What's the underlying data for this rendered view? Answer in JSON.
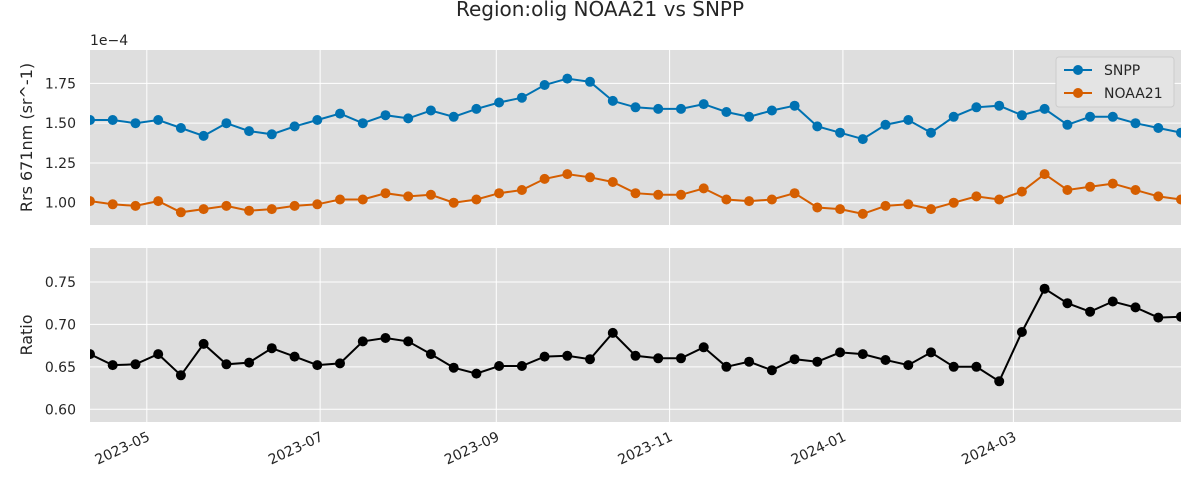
{
  "title": "Region:olig NOAA21 vs SNPP",
  "colors": {
    "snpp": "#0072b2",
    "noaa21": "#d55e00",
    "ratio": "#000000",
    "panel_bg": "#dedede",
    "grid": "#ffffff"
  },
  "chart_data": [
    {
      "type": "line",
      "title": "",
      "ylabel": "Rrs 671nm (sr^-1)",
      "y_multiplier_label": "1e−4",
      "ylim": [
        0.86,
        1.96
      ],
      "yticks": [
        1.0,
        1.25,
        1.5,
        1.75
      ],
      "ytick_labels": [
        "1.00",
        "1.25",
        "1.50",
        "1.75"
      ],
      "grid": true,
      "legend_placement": "top-right",
      "series": [
        {
          "name": "SNPP",
          "values": [
            1.52,
            1.52,
            1.5,
            1.52,
            1.47,
            1.42,
            1.5,
            1.45,
            1.43,
            1.48,
            1.52,
            1.56,
            1.5,
            1.55,
            1.53,
            1.58,
            1.54,
            1.59,
            1.63,
            1.66,
            1.74,
            1.78,
            1.76,
            1.64,
            1.6,
            1.59,
            1.59,
            1.62,
            1.57,
            1.54,
            1.58,
            1.61,
            1.48,
            1.44,
            1.4,
            1.49,
            1.52,
            1.44,
            1.54,
            1.6,
            1.61,
            1.55,
            1.59,
            1.49,
            1.54,
            1.54,
            1.5,
            1.47,
            1.44
          ]
        },
        {
          "name": "NOAA21",
          "values": [
            1.01,
            0.99,
            0.98,
            1.01,
            0.94,
            0.96,
            0.98,
            0.95,
            0.96,
            0.98,
            0.99,
            1.02,
            1.02,
            1.06,
            1.04,
            1.05,
            1.0,
            1.02,
            1.06,
            1.08,
            1.15,
            1.18,
            1.16,
            1.13,
            1.06,
            1.05,
            1.05,
            1.09,
            1.02,
            1.01,
            1.02,
            1.06,
            0.97,
            0.96,
            0.93,
            0.98,
            0.99,
            0.96,
            1.0,
            1.04,
            1.02,
            1.07,
            1.18,
            1.08,
            1.1,
            1.12,
            1.08,
            1.04,
            1.02
          ]
        }
      ]
    },
    {
      "type": "line",
      "title": "",
      "ylabel": "Ratio",
      "ylim": [
        0.585,
        0.79
      ],
      "yticks": [
        0.6,
        0.65,
        0.7,
        0.75
      ],
      "ytick_labels": [
        "0.60",
        "0.65",
        "0.70",
        "0.75"
      ],
      "grid": true,
      "series": [
        {
          "values": [
            0.665,
            0.652,
            0.653,
            0.665,
            0.64,
            0.677,
            0.653,
            0.655,
            0.672,
            0.662,
            0.652,
            0.654,
            0.68,
            0.684,
            0.68,
            0.665,
            0.649,
            0.642,
            0.651,
            0.651,
            0.662,
            0.663,
            0.659,
            0.69,
            0.663,
            0.66,
            0.66,
            0.673,
            0.65,
            0.656,
            0.646,
            0.659,
            0.656,
            0.667,
            0.665,
            0.658,
            0.652,
            0.667,
            0.65,
            0.65,
            0.633,
            0.691,
            0.742,
            0.725,
            0.715,
            0.727,
            0.72,
            0.708,
            0.709
          ]
        }
      ]
    }
  ],
  "x_dates": [
    "2023-04-11",
    "2023-04-19",
    "2023-04-27",
    "2023-05-05",
    "2023-05-13",
    "2023-05-21",
    "2023-05-29",
    "2023-06-06",
    "2023-06-14",
    "2023-06-22",
    "2023-06-30",
    "2023-07-08",
    "2023-07-16",
    "2023-07-24",
    "2023-08-01",
    "2023-08-09",
    "2023-08-17",
    "2023-08-25",
    "2023-09-02",
    "2023-09-10",
    "2023-09-18",
    "2023-09-26",
    "2023-10-04",
    "2023-10-12",
    "2023-10-20",
    "2023-10-28",
    "2023-11-05",
    "2023-11-13",
    "2023-11-21",
    "2023-11-29",
    "2023-12-07",
    "2023-12-15",
    "2023-12-23",
    "2023-12-31",
    "2024-01-08",
    "2024-01-16",
    "2024-01-24",
    "2024-02-01",
    "2024-02-09",
    "2024-02-17",
    "2024-02-25",
    "2024-03-04",
    "2024-03-12",
    "2024-03-20",
    "2024-03-28",
    "2024-04-05",
    "2024-04-13",
    "2024-04-21",
    "2024-04-29"
  ],
  "x_ticks": [
    "2023-05-01",
    "2023-07-01",
    "2023-09-01",
    "2023-11-01",
    "2024-01-01",
    "2024-03-01"
  ],
  "x_tick_labels": [
    "2023-05",
    "2023-07",
    "2023-09",
    "2023-11",
    "2024-01",
    "2024-03"
  ],
  "xlim": [
    "2023-04-11",
    "2024-04-29"
  ]
}
